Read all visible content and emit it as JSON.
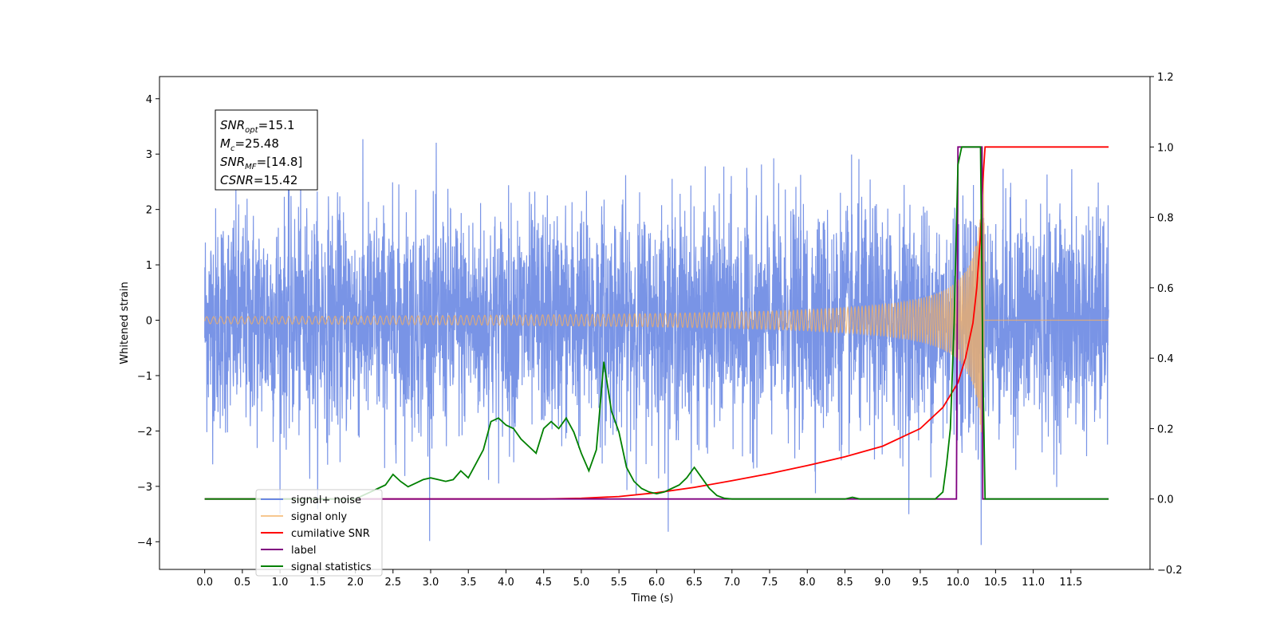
{
  "chart_data": {
    "type": "line",
    "title": "",
    "xlabel": "Time (s)",
    "ylabel": "Whitened strain",
    "y2label": "",
    "xlim": [
      -0.6,
      12.55
    ],
    "ylim": [
      -4.5,
      4.4
    ],
    "y2lim": [
      -0.2,
      1.2
    ],
    "xticks": [
      "0.0",
      "0.5",
      "1.0",
      "1.5",
      "2.0",
      "2.5",
      "3.0",
      "3.5",
      "4.0",
      "4.5",
      "5.0",
      "5.5",
      "6.0",
      "6.5",
      "7.0",
      "7.5",
      "8.0",
      "8.5",
      "9.0",
      "9.5",
      "10.0",
      "10.5",
      "11.0",
      "11.5"
    ],
    "yticks": [
      "4",
      "3",
      "2",
      "1",
      "0",
      "−1",
      "−2",
      "−3",
      "−4"
    ],
    "y2ticks": [
      "1.2",
      "1.0",
      "0.8",
      "0.6",
      "0.4",
      "0.2",
      "0.0",
      "−0.2"
    ],
    "grid": false,
    "legend_position": "lower-left",
    "annotation": {
      "lines": [
        {
          "sym": "SNR",
          "sub": "opt",
          "value": "=15.1"
        },
        {
          "sym": "M",
          "sub": "c",
          "value": "=25.48"
        },
        {
          "sym": "SNR",
          "sub": "MF",
          "value": "=[14.8]"
        },
        {
          "sym": "CSNR",
          "sub": "",
          "value": "=15.42"
        }
      ]
    },
    "series": [
      {
        "name": "signal+ noise",
        "color": "#6a88e3",
        "axis": "left",
        "description_type": "noise",
        "amplitude_std": 1.0,
        "x_range": [
          0.0,
          12.0
        ]
      },
      {
        "name": "signal only",
        "color": "#f5b061",
        "axis": "left",
        "description_type": "chirp",
        "x_range": [
          0.0,
          12.0
        ],
        "merger_time": 10.35
      },
      {
        "name": "cumilative SNR",
        "color": "#ff0000",
        "axis": "right",
        "x": [
          0.0,
          4.5,
          5.0,
          5.5,
          6.0,
          6.5,
          7.0,
          7.5,
          8.0,
          8.5,
          9.0,
          9.5,
          9.8,
          10.0,
          10.1,
          10.2,
          10.25,
          10.3,
          10.33,
          10.36,
          12.0
        ],
        "y": [
          0.0,
          0.0,
          0.002,
          0.007,
          0.018,
          0.033,
          0.052,
          0.072,
          0.095,
          0.12,
          0.15,
          0.2,
          0.26,
          0.33,
          0.4,
          0.5,
          0.6,
          0.75,
          0.9,
          1.0,
          1.0
        ]
      },
      {
        "name": "label",
        "color": "#800080",
        "axis": "right",
        "x": [
          0.0,
          9.98,
          10.0,
          10.32,
          10.33,
          12.0
        ],
        "y": [
          0.0,
          0.0,
          1.0,
          1.0,
          0.0,
          0.0
        ]
      },
      {
        "name": "signal statistics",
        "color": "#008000",
        "axis": "right",
        "x": [
          0.0,
          2.0,
          2.1,
          2.2,
          2.3,
          2.4,
          2.5,
          2.6,
          2.7,
          2.8,
          2.9,
          3.0,
          3.1,
          3.2,
          3.3,
          3.4,
          3.5,
          3.6,
          3.7,
          3.8,
          3.9,
          4.0,
          4.1,
          4.2,
          4.3,
          4.4,
          4.5,
          4.6,
          4.7,
          4.8,
          4.9,
          5.0,
          5.1,
          5.2,
          5.3,
          5.4,
          5.5,
          5.6,
          5.7,
          5.8,
          5.9,
          6.0,
          6.1,
          6.2,
          6.3,
          6.4,
          6.5,
          6.6,
          6.7,
          6.8,
          6.9,
          7.0,
          8.5,
          8.6,
          8.7,
          9.7,
          9.8,
          9.85,
          9.9,
          9.95,
          10.0,
          10.05,
          10.1,
          10.15,
          10.3,
          10.33,
          10.36,
          10.4,
          12.0
        ],
        "y": [
          0.0,
          0.0,
          0.01,
          0.02,
          0.03,
          0.04,
          0.07,
          0.05,
          0.035,
          0.045,
          0.055,
          0.06,
          0.055,
          0.05,
          0.055,
          0.08,
          0.06,
          0.1,
          0.14,
          0.22,
          0.23,
          0.21,
          0.2,
          0.17,
          0.15,
          0.13,
          0.2,
          0.22,
          0.2,
          0.23,
          0.19,
          0.13,
          0.08,
          0.14,
          0.39,
          0.25,
          0.19,
          0.09,
          0.05,
          0.03,
          0.02,
          0.015,
          0.02,
          0.03,
          0.04,
          0.06,
          0.09,
          0.06,
          0.03,
          0.01,
          0.002,
          0.0,
          0.0,
          0.005,
          0.0,
          0.0,
          0.02,
          0.1,
          0.2,
          0.5,
          0.95,
          1.0,
          1.0,
          1.0,
          1.0,
          0.4,
          0.0,
          0.0,
          0.0
        ]
      }
    ],
    "legend": [
      {
        "label": "signal+ noise",
        "color": "#6a88e3",
        "alpha": 1.0
      },
      {
        "label": "signal only",
        "color": "#f5b061",
        "alpha": 0.7
      },
      {
        "label": "cumilative SNR",
        "color": "#ff0000",
        "alpha": 1.0
      },
      {
        "label": "label",
        "color": "#800080",
        "alpha": 1.0
      },
      {
        "label": "signal statistics",
        "color": "#008000",
        "alpha": 1.0
      }
    ]
  }
}
